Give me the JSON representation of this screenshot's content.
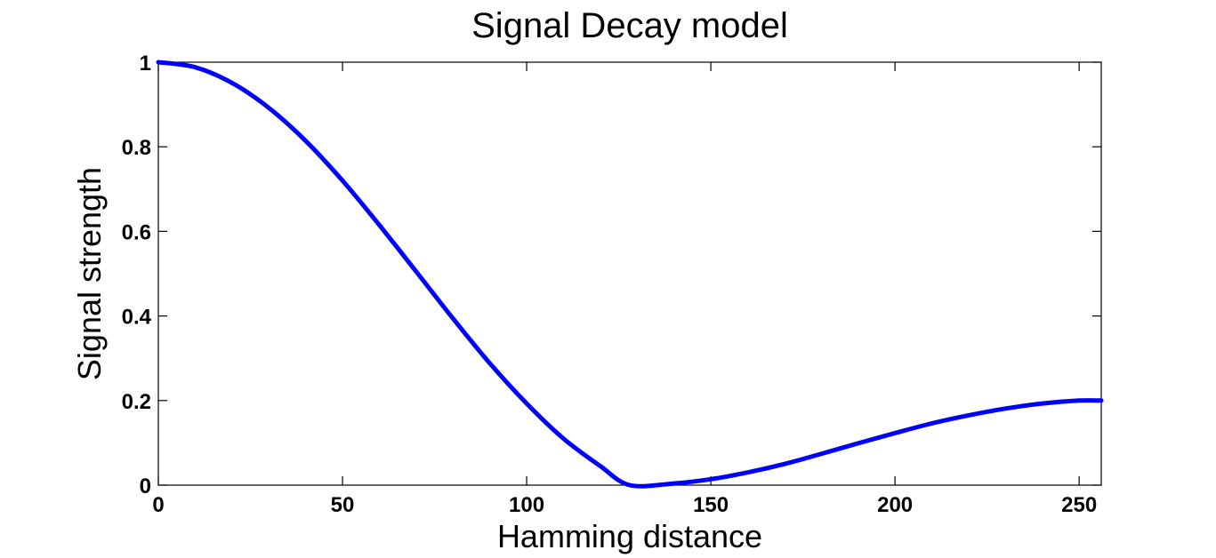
{
  "chart_data": {
    "type": "line",
    "title": "Signal Decay model",
    "xlabel": "Hamming distance",
    "ylabel": "Signal strength",
    "xlim": [
      0,
      256
    ],
    "ylim": [
      0,
      1
    ],
    "x_ticks": [
      0,
      50,
      100,
      150,
      200,
      250
    ],
    "y_ticks": [
      0,
      0.2,
      0.4,
      0.6,
      0.8,
      1
    ],
    "x_tick_labels": [
      "0",
      "50",
      "100",
      "150",
      "200",
      "250"
    ],
    "y_tick_labels": [
      "0",
      "0.2",
      "0.4",
      "0.6",
      "0.8",
      "1"
    ],
    "grid": false,
    "line_color": "#0000ff",
    "series": [
      {
        "x": [
          0,
          10,
          20,
          30,
          40,
          50,
          60,
          70,
          80,
          90,
          100,
          110,
          120,
          128,
          140,
          150,
          160,
          170,
          180,
          190,
          200,
          210,
          220,
          230,
          240,
          250,
          256
        ],
        "y": [
          1.0,
          0.988,
          0.951,
          0.892,
          0.814,
          0.72,
          0.615,
          0.505,
          0.394,
          0.288,
          0.193,
          0.11,
          0.045,
          0.0,
          0.004,
          0.014,
          0.03,
          0.05,
          0.074,
          0.099,
          0.123,
          0.146,
          0.165,
          0.181,
          0.193,
          0.2,
          0.2
        ]
      }
    ]
  }
}
